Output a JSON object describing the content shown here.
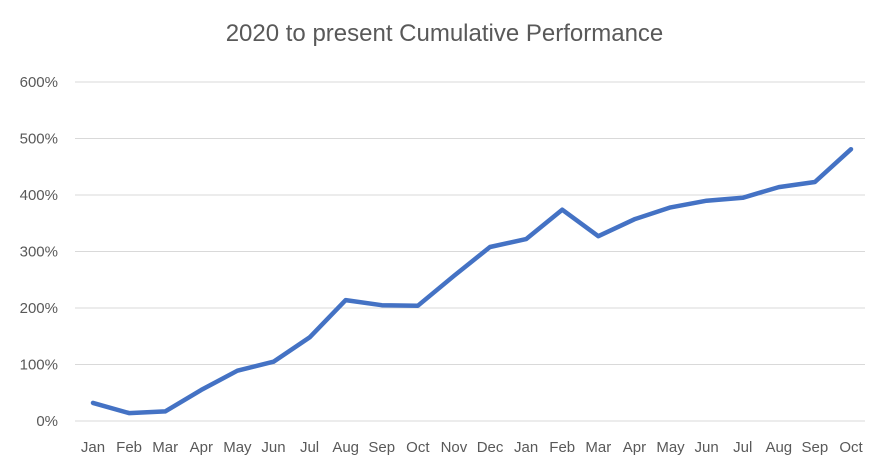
{
  "chart_data": {
    "type": "line",
    "title": "2020 to present Cumulative Performance",
    "xlabel": "",
    "ylabel": "",
    "categories": [
      "Jan",
      "Feb",
      "Mar",
      "Apr",
      "May",
      "Jun",
      "Jul",
      "Aug",
      "Sep",
      "Oct",
      "Nov",
      "Dec",
      "Jan",
      "Feb",
      "Mar",
      "Apr",
      "May",
      "Jun",
      "Jul",
      "Aug",
      "Sep",
      "Oct"
    ],
    "series": [
      {
        "color": "#4472c4",
        "values": [
          32,
          14,
          17,
          55,
          89,
          105,
          148,
          214,
          205,
          204,
          257,
          308,
          322,
          374,
          327,
          357,
          378,
          390,
          395,
          414,
          423,
          481
        ]
      }
    ],
    "ylim": [
      0,
      600
    ],
    "yticks": [
      0,
      100,
      200,
      300,
      400,
      500,
      600
    ],
    "ytick_labels": [
      "0%",
      "100%",
      "200%",
      "300%",
      "400%",
      "500%",
      "600%"
    ],
    "grid": true,
    "legend": "none"
  }
}
